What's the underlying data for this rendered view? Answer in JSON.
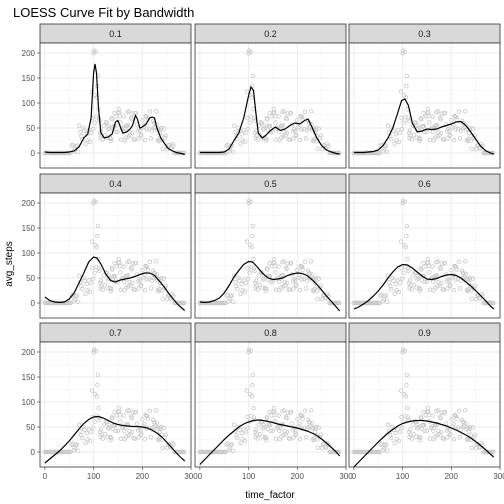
{
  "chart_data": {
    "type": "scatter",
    "title": "LOESS Curve Fit by Bandwidth",
    "xlabel": "time_factor",
    "ylabel": "avg_steps",
    "xlim": [
      -10,
      300
    ],
    "ylim": [
      -30,
      220
    ],
    "x_ticks": [
      0,
      100,
      200,
      300
    ],
    "y_ticks": [
      0,
      50,
      100,
      150,
      200
    ],
    "grid": true,
    "facets": [
      {
        "label": "0.1",
        "fit": [
          [
            0,
            2
          ],
          [
            10,
            1
          ],
          [
            20,
            1
          ],
          [
            30,
            1
          ],
          [
            40,
            1
          ],
          [
            50,
            2
          ],
          [
            60,
            4
          ],
          [
            70,
            12
          ],
          [
            80,
            30
          ],
          [
            88,
            38
          ],
          [
            95,
            70
          ],
          [
            100,
            160
          ],
          [
            103,
            178
          ],
          [
            106,
            160
          ],
          [
            110,
            90
          ],
          [
            115,
            40
          ],
          [
            122,
            30
          ],
          [
            130,
            32
          ],
          [
            138,
            38
          ],
          [
            145,
            62
          ],
          [
            150,
            65
          ],
          [
            155,
            52
          ],
          [
            160,
            40
          ],
          [
            168,
            42
          ],
          [
            175,
            48
          ],
          [
            180,
            55
          ],
          [
            186,
            75
          ],
          [
            190,
            68
          ],
          [
            195,
            50
          ],
          [
            200,
            52
          ],
          [
            208,
            58
          ],
          [
            215,
            70
          ],
          [
            220,
            72
          ],
          [
            225,
            70
          ],
          [
            230,
            50
          ],
          [
            238,
            30
          ],
          [
            245,
            20
          ],
          [
            252,
            10
          ],
          [
            260,
            5
          ],
          [
            270,
            1
          ],
          [
            280,
            -1
          ],
          [
            287,
            -3
          ]
        ]
      },
      {
        "label": "0.2",
        "fit": [
          [
            0,
            1
          ],
          [
            10,
            1
          ],
          [
            20,
            1
          ],
          [
            30,
            1
          ],
          [
            40,
            1
          ],
          [
            50,
            2
          ],
          [
            60,
            8
          ],
          [
            70,
            25
          ],
          [
            80,
            40
          ],
          [
            90,
            70
          ],
          [
            100,
            115
          ],
          [
            105,
            132
          ],
          [
            110,
            125
          ],
          [
            115,
            80
          ],
          [
            120,
            40
          ],
          [
            128,
            30
          ],
          [
            135,
            35
          ],
          [
            145,
            45
          ],
          [
            155,
            52
          ],
          [
            165,
            45
          ],
          [
            175,
            48
          ],
          [
            185,
            55
          ],
          [
            195,
            60
          ],
          [
            205,
            58
          ],
          [
            215,
            65
          ],
          [
            222,
            68
          ],
          [
            230,
            52
          ],
          [
            240,
            30
          ],
          [
            250,
            15
          ],
          [
            260,
            6
          ],
          [
            270,
            2
          ],
          [
            280,
            -1
          ],
          [
            287,
            -2
          ]
        ]
      },
      {
        "label": "0.3",
        "fit": [
          [
            0,
            1
          ],
          [
            10,
            1
          ],
          [
            20,
            1
          ],
          [
            30,
            2
          ],
          [
            40,
            3
          ],
          [
            50,
            6
          ],
          [
            60,
            15
          ],
          [
            70,
            30
          ],
          [
            80,
            50
          ],
          [
            90,
            80
          ],
          [
            98,
            105
          ],
          [
            105,
            108
          ],
          [
            112,
            95
          ],
          [
            120,
            60
          ],
          [
            130,
            42
          ],
          [
            140,
            44
          ],
          [
            150,
            48
          ],
          [
            160,
            47
          ],
          [
            170,
            48
          ],
          [
            180,
            52
          ],
          [
            190,
            55
          ],
          [
            200,
            58
          ],
          [
            210,
            62
          ],
          [
            220,
            63
          ],
          [
            230,
            55
          ],
          [
            240,
            42
          ],
          [
            250,
            28
          ],
          [
            260,
            14
          ],
          [
            270,
            5
          ],
          [
            280,
            0
          ],
          [
            287,
            -2
          ]
        ]
      },
      {
        "label": "0.4",
        "fit": [
          [
            0,
            12
          ],
          [
            10,
            5
          ],
          [
            20,
            2
          ],
          [
            30,
            1
          ],
          [
            40,
            2
          ],
          [
            50,
            8
          ],
          [
            60,
            20
          ],
          [
            70,
            40
          ],
          [
            80,
            60
          ],
          [
            90,
            82
          ],
          [
            100,
            92
          ],
          [
            107,
            90
          ],
          [
            115,
            78
          ],
          [
            125,
            58
          ],
          [
            135,
            45
          ],
          [
            145,
            42
          ],
          [
            155,
            46
          ],
          [
            165,
            48
          ],
          [
            175,
            50
          ],
          [
            185,
            53
          ],
          [
            195,
            57
          ],
          [
            205,
            60
          ],
          [
            215,
            60
          ],
          [
            225,
            55
          ],
          [
            235,
            44
          ],
          [
            245,
            32
          ],
          [
            255,
            18
          ],
          [
            265,
            6
          ],
          [
            275,
            -5
          ],
          [
            287,
            -15
          ]
        ]
      },
      {
        "label": "0.5",
        "fit": [
          [
            0,
            2
          ],
          [
            10,
            1
          ],
          [
            20,
            2
          ],
          [
            30,
            5
          ],
          [
            40,
            10
          ],
          [
            50,
            20
          ],
          [
            60,
            35
          ],
          [
            70,
            52
          ],
          [
            80,
            65
          ],
          [
            90,
            77
          ],
          [
            100,
            83
          ],
          [
            108,
            82
          ],
          [
            118,
            72
          ],
          [
            128,
            60
          ],
          [
            140,
            50
          ],
          [
            150,
            47
          ],
          [
            160,
            48
          ],
          [
            170,
            50
          ],
          [
            180,
            55
          ],
          [
            190,
            58
          ],
          [
            200,
            60
          ],
          [
            210,
            59
          ],
          [
            220,
            55
          ],
          [
            230,
            47
          ],
          [
            240,
            37
          ],
          [
            250,
            26
          ],
          [
            260,
            14
          ],
          [
            270,
            3
          ],
          [
            280,
            -8
          ],
          [
            287,
            -16
          ]
        ]
      },
      {
        "label": "0.6",
        "fit": [
          [
            0,
            -12
          ],
          [
            10,
            -8
          ],
          [
            20,
            -2
          ],
          [
            30,
            5
          ],
          [
            40,
            14
          ],
          [
            50,
            24
          ],
          [
            60,
            36
          ],
          [
            70,
            50
          ],
          [
            80,
            62
          ],
          [
            90,
            72
          ],
          [
            100,
            77
          ],
          [
            110,
            76
          ],
          [
            120,
            70
          ],
          [
            130,
            62
          ],
          [
            140,
            54
          ],
          [
            150,
            48
          ],
          [
            160,
            47
          ],
          [
            170,
            49
          ],
          [
            180,
            53
          ],
          [
            190,
            56
          ],
          [
            200,
            57
          ],
          [
            210,
            55
          ],
          [
            220,
            50
          ],
          [
            230,
            42
          ],
          [
            240,
            34
          ],
          [
            250,
            25
          ],
          [
            260,
            15
          ],
          [
            270,
            5
          ],
          [
            280,
            -6
          ],
          [
            287,
            -12
          ]
        ]
      },
      {
        "label": "0.7",
        "fit": [
          [
            0,
            -22
          ],
          [
            10,
            -14
          ],
          [
            20,
            -6
          ],
          [
            30,
            2
          ],
          [
            40,
            12
          ],
          [
            50,
            22
          ],
          [
            60,
            34
          ],
          [
            70,
            46
          ],
          [
            80,
            57
          ],
          [
            90,
            65
          ],
          [
            100,
            70
          ],
          [
            110,
            71
          ],
          [
            120,
            68
          ],
          [
            130,
            63
          ],
          [
            140,
            58
          ],
          [
            150,
            55
          ],
          [
            160,
            53
          ],
          [
            170,
            52
          ],
          [
            180,
            51
          ],
          [
            190,
            51
          ],
          [
            200,
            50
          ],
          [
            210,
            48
          ],
          [
            220,
            44
          ],
          [
            230,
            38
          ],
          [
            240,
            30
          ],
          [
            250,
            20
          ],
          [
            260,
            9
          ],
          [
            270,
            -2
          ],
          [
            280,
            -12
          ],
          [
            287,
            -18
          ]
        ]
      },
      {
        "label": "0.8",
        "fit": [
          [
            0,
            -25
          ],
          [
            10,
            -15
          ],
          [
            20,
            -5
          ],
          [
            30,
            5
          ],
          [
            40,
            15
          ],
          [
            50,
            25
          ],
          [
            60,
            34
          ],
          [
            70,
            42
          ],
          [
            80,
            50
          ],
          [
            90,
            56
          ],
          [
            100,
            60
          ],
          [
            110,
            63
          ],
          [
            120,
            64
          ],
          [
            130,
            63
          ],
          [
            140,
            61
          ],
          [
            150,
            59
          ],
          [
            160,
            56
          ],
          [
            170,
            54
          ],
          [
            180,
            52
          ],
          [
            190,
            50
          ],
          [
            200,
            48
          ],
          [
            210,
            45
          ],
          [
            220,
            42
          ],
          [
            230,
            38
          ],
          [
            240,
            33
          ],
          [
            250,
            26
          ],
          [
            260,
            18
          ],
          [
            270,
            9
          ],
          [
            280,
            0
          ],
          [
            287,
            -8
          ]
        ]
      },
      {
        "label": "0.9",
        "fit": [
          [
            0,
            -30
          ],
          [
            10,
            -20
          ],
          [
            20,
            -10
          ],
          [
            30,
            0
          ],
          [
            40,
            10
          ],
          [
            50,
            20
          ],
          [
            60,
            29
          ],
          [
            70,
            38
          ],
          [
            80,
            45
          ],
          [
            90,
            52
          ],
          [
            100,
            57
          ],
          [
            110,
            60
          ],
          [
            120,
            62
          ],
          [
            130,
            63
          ],
          [
            140,
            63
          ],
          [
            150,
            62
          ],
          [
            160,
            60
          ],
          [
            170,
            58
          ],
          [
            180,
            55
          ],
          [
            190,
            52
          ],
          [
            200,
            48
          ],
          [
            210,
            44
          ],
          [
            220,
            39
          ],
          [
            230,
            34
          ],
          [
            240,
            28
          ],
          [
            250,
            21
          ],
          [
            260,
            13
          ],
          [
            270,
            5
          ],
          [
            280,
            -4
          ],
          [
            287,
            -10
          ]
        ]
      }
    ]
  }
}
